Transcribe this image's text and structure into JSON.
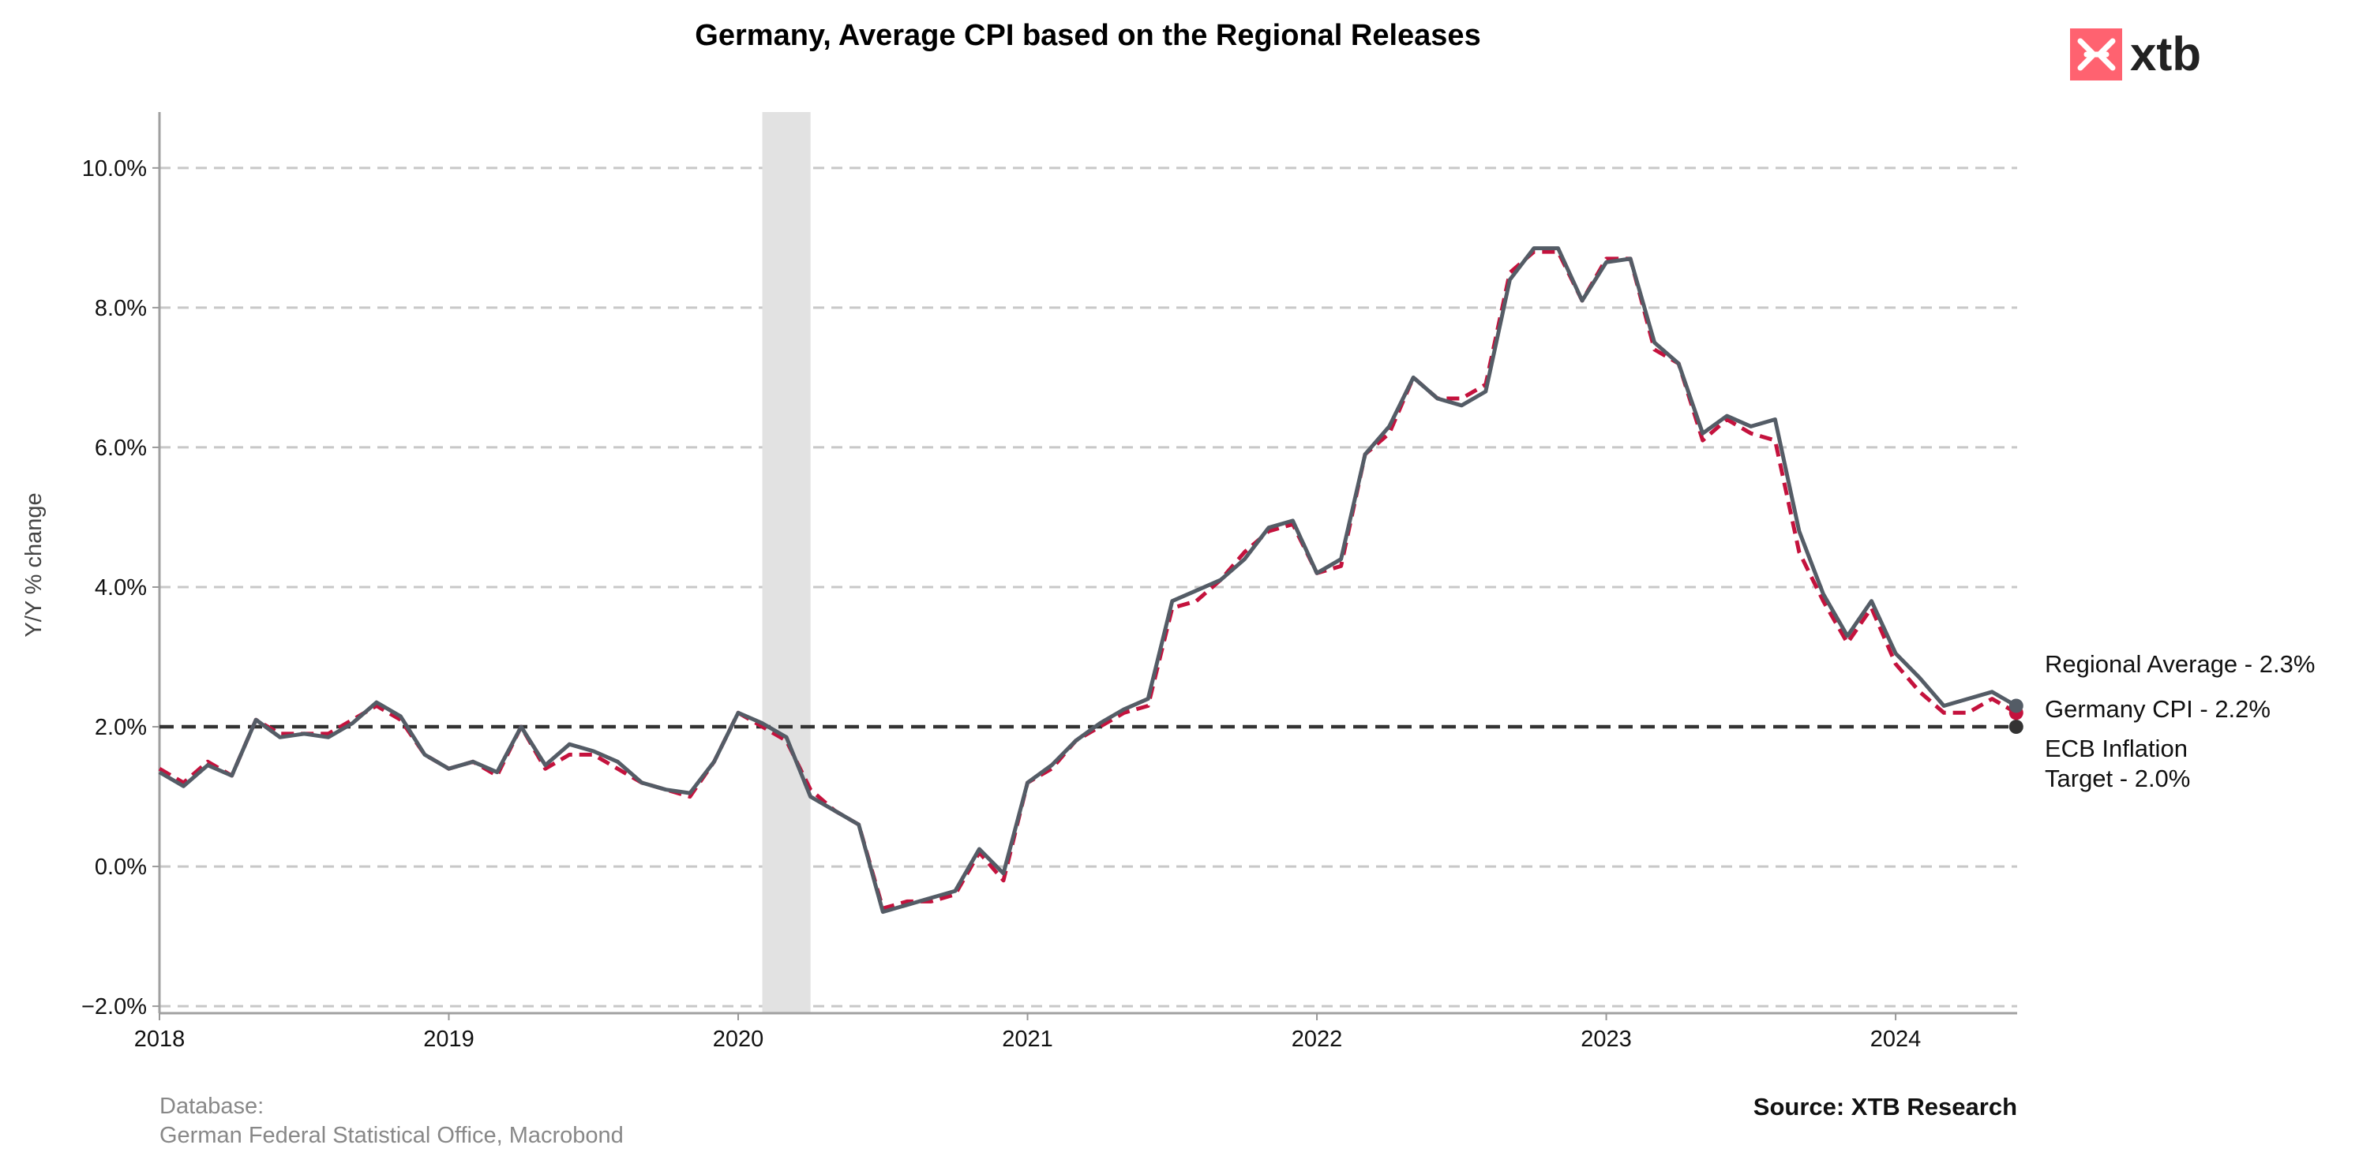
{
  "brand": {
    "logo_text": "xtb",
    "accent": "#ff6270"
  },
  "footer": {
    "db_label": "Database:",
    "db_sources": "German Federal Statistical Office, Macrobond",
    "source": "Source: XTB Research"
  },
  "chart_data": {
    "type": "line",
    "title": "Germany, Average CPI based on the Regional Releases",
    "ylabel": "Y/Y % change",
    "xlabel": "",
    "xlim": [
      2018.0,
      2024.42
    ],
    "ylim": [
      -2.1,
      10.8
    ],
    "yticks": [
      -2,
      0,
      2,
      4,
      6,
      8,
      10
    ],
    "ytick_labels": [
      "−2.0%",
      "0.0%",
      "2.0%",
      "4.0%",
      "6.0%",
      "8.0%",
      "10.0%"
    ],
    "xticks": [
      2018,
      2019,
      2020,
      2021,
      2022,
      2023,
      2024
    ],
    "xtick_labels": [
      "2018",
      "2019",
      "2020",
      "2021",
      "2022",
      "2023",
      "2024"
    ],
    "grid": "horizontal dashed",
    "x_start": "2018-01",
    "x_step": "1 month",
    "shaded_period": [
      "2020-02",
      "2020-04"
    ],
    "reference_line": {
      "name": "ECB Inflation Target",
      "value": 2.0,
      "color": "#333333",
      "style": "dashed"
    },
    "series": [
      {
        "name": "Regional Average",
        "color": "#545c66",
        "style": "solid",
        "values": [
          1.35,
          1.15,
          1.45,
          1.3,
          2.1,
          1.85,
          1.9,
          1.85,
          2.05,
          2.35,
          2.15,
          1.6,
          1.4,
          1.5,
          1.35,
          2.0,
          1.45,
          1.75,
          1.65,
          1.5,
          1.2,
          1.1,
          1.05,
          1.5,
          2.2,
          2.05,
          1.85,
          1.0,
          0.8,
          0.6,
          -0.65,
          -0.55,
          -0.45,
          -0.35,
          0.25,
          -0.1,
          1.2,
          1.45,
          1.8,
          2.05,
          2.25,
          2.4,
          3.8,
          3.95,
          4.1,
          4.4,
          4.85,
          4.95,
          4.2,
          4.4,
          5.9,
          6.3,
          7.0,
          6.7,
          6.6,
          6.8,
          8.4,
          8.85,
          8.85,
          8.1,
          8.65,
          8.7,
          7.5,
          7.2,
          6.2,
          6.45,
          6.3,
          6.4,
          4.8,
          3.9,
          3.3,
          3.8,
          3.05,
          2.7,
          2.3,
          2.4,
          2.5,
          2.3
        ]
      },
      {
        "name": "Germany CPI",
        "color": "#c4123d",
        "style": "dashed",
        "values": [
          1.4,
          1.2,
          1.5,
          1.3,
          2.1,
          1.9,
          1.9,
          1.9,
          2.1,
          2.3,
          2.1,
          1.6,
          1.4,
          1.5,
          1.3,
          2.0,
          1.4,
          1.6,
          1.6,
          1.4,
          1.2,
          1.1,
          1.0,
          1.5,
          2.2,
          2.0,
          1.8,
          1.1,
          0.8,
          0.6,
          -0.6,
          -0.5,
          -0.5,
          -0.4,
          0.2,
          -0.2,
          1.2,
          1.4,
          1.8,
          2.0,
          2.2,
          2.3,
          3.7,
          3.8,
          4.1,
          4.5,
          4.8,
          4.9,
          4.2,
          4.3,
          5.9,
          6.2,
          7.0,
          6.7,
          6.7,
          6.9,
          8.5,
          8.8,
          8.8,
          8.1,
          8.7,
          8.7,
          7.4,
          7.2,
          6.1,
          6.4,
          6.2,
          6.1,
          4.5,
          3.8,
          3.2,
          3.7,
          2.9,
          2.5,
          2.2,
          2.2,
          2.4,
          2.2
        ]
      }
    ],
    "end_labels": [
      {
        "text": "Regional Average - 2.3%",
        "value": 2.3
      },
      {
        "text": "Germany CPI - 2.2%",
        "value": 2.2
      },
      {
        "text": "ECB Inflation",
        "value": 2.0
      },
      {
        "text": "Target - 2.0%",
        "value": 2.0
      }
    ]
  }
}
